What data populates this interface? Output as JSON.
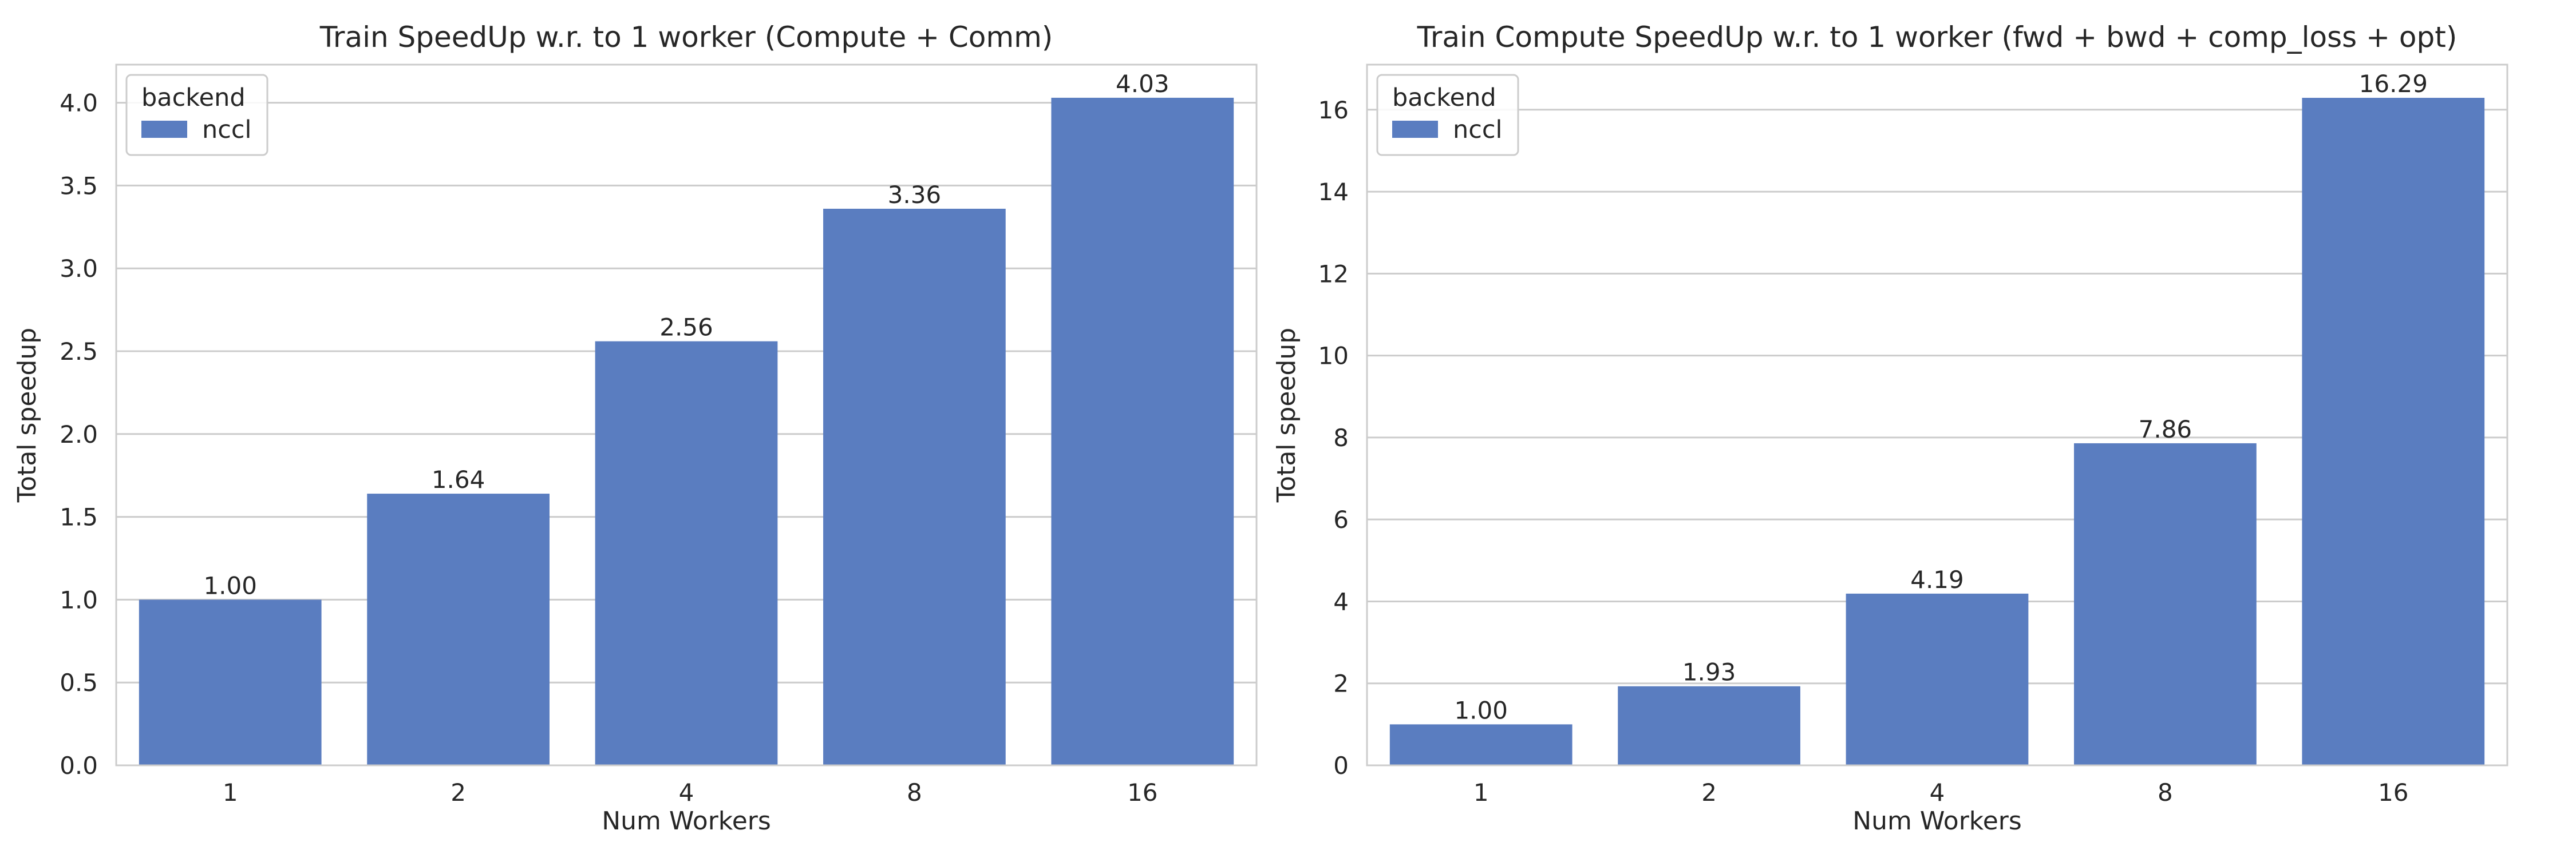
{
  "chart_data": [
    {
      "type": "bar",
      "title": "Train SpeedUp w.r. to 1 worker (Compute + Comm)",
      "xlabel": "Num Workers",
      "ylabel": "Total speedup",
      "categories": [
        "1",
        "2",
        "4",
        "8",
        "16"
      ],
      "series": [
        {
          "name": "nccl",
          "values": [
            1.0,
            1.64,
            2.56,
            3.36,
            4.03
          ]
        }
      ],
      "data_labels": [
        "1.00",
        "1.64",
        "2.56",
        "3.36",
        "4.03"
      ],
      "ylim": [
        0,
        4.23
      ],
      "yticks": [
        0.0,
        0.5,
        1.0,
        1.5,
        2.0,
        2.5,
        3.0,
        3.5,
        4.0
      ],
      "ytick_labels": [
        "0.0",
        "0.5",
        "1.0",
        "1.5",
        "2.0",
        "2.5",
        "3.0",
        "3.5",
        "4.0"
      ],
      "legend": {
        "title": "backend",
        "entries": [
          "nccl"
        ],
        "placement": "upper-left"
      },
      "grid": "horizontal",
      "color": "#5A7DC0"
    },
    {
      "type": "bar",
      "title": "Train Compute SpeedUp w.r. to 1 worker (fwd + bwd + comp_loss + opt)",
      "xlabel": "Num Workers",
      "ylabel": "Total speedup",
      "categories": [
        "1",
        "2",
        "4",
        "8",
        "16"
      ],
      "series": [
        {
          "name": "nccl",
          "values": [
            1.0,
            1.93,
            4.19,
            7.86,
            16.29
          ]
        }
      ],
      "data_labels": [
        "1.00",
        "1.93",
        "4.19",
        "7.86",
        "16.29"
      ],
      "ylim": [
        0,
        17.1
      ],
      "yticks": [
        0,
        2,
        4,
        6,
        8,
        10,
        12,
        14,
        16
      ],
      "ytick_labels": [
        "0",
        "2",
        "4",
        "6",
        "8",
        "10",
        "12",
        "14",
        "16"
      ],
      "legend": {
        "title": "backend",
        "entries": [
          "nccl"
        ],
        "placement": "upper-left"
      },
      "grid": "horizontal",
      "color": "#5A7DC0"
    }
  ]
}
